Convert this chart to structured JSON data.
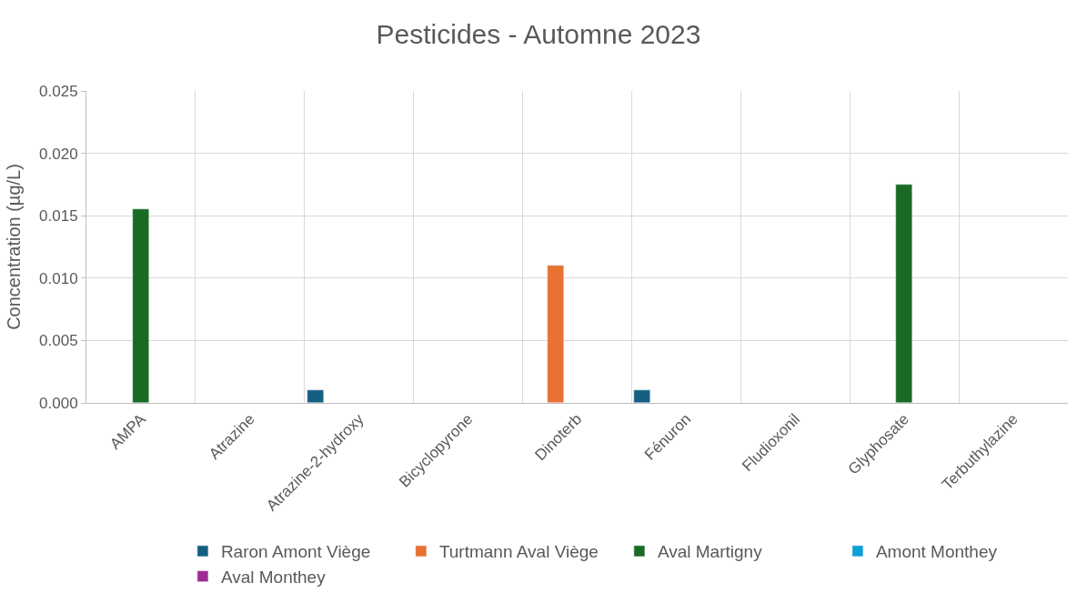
{
  "chart_data": {
    "type": "bar",
    "title": "Pesticides - Automne 2023",
    "ylabel": "Concentration (µg/L)",
    "categories": [
      "AMPA",
      "Atrazine",
      "Atrazine-2-hydroxy",
      "Bicyclopyrone",
      "Dinoterb",
      "Fénuron",
      "Fludioxonil",
      "Glyphosate",
      "Terbuthylazine"
    ],
    "series": [
      {
        "name": "Raron Amont Viège",
        "color": "#156082",
        "values": [
          null,
          null,
          0.001,
          null,
          null,
          0.001,
          null,
          null,
          null
        ]
      },
      {
        "name": "Turtmann Aval Viège",
        "color": "#e97132",
        "values": [
          null,
          null,
          null,
          null,
          0.011,
          null,
          null,
          null,
          null
        ]
      },
      {
        "name": "Aval Martigny",
        "color": "#196b24",
        "values": [
          0.0155,
          null,
          null,
          null,
          null,
          null,
          null,
          0.0175,
          null
        ]
      },
      {
        "name": "Amont Monthey",
        "color": "#0f9ed5",
        "values": [
          null,
          null,
          null,
          null,
          null,
          null,
          null,
          null,
          null
        ]
      },
      {
        "name": "Aval Monthey",
        "color": "#a02b93",
        "values": [
          null,
          null,
          null,
          null,
          null,
          null,
          null,
          null,
          null
        ]
      }
    ],
    "ylim": [
      0,
      0.025
    ],
    "yticks": [
      {
        "value": 0,
        "label": "0.000"
      },
      {
        "value": 0.005,
        "label": "0.005"
      },
      {
        "value": 0.01,
        "label": "0.010"
      },
      {
        "value": 0.015,
        "label": "0.015"
      },
      {
        "value": 0.02,
        "label": "0.020"
      },
      {
        "value": 0.025,
        "label": "0.025"
      }
    ],
    "grid": true,
    "legend": "bottom"
  }
}
